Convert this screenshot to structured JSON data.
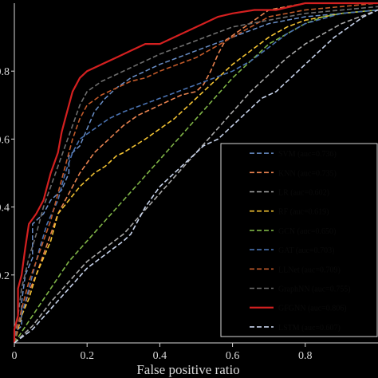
{
  "chart_data": {
    "type": "line",
    "title": "",
    "xlabel": "False positive ratio",
    "ylabel": "",
    "xlim": [
      0,
      1
    ],
    "ylim": [
      0,
      1
    ],
    "xticks": [
      "0",
      "0.2",
      "0.4",
      "0.6",
      "0.8"
    ],
    "yticks": [
      "0.2",
      "0.4",
      "0.6",
      "0.8"
    ],
    "legend_position": "bottom-right",
    "series": [
      {
        "name": "SVM (auc=0.736)",
        "color": "#6a8fc8",
        "dash": "6,3",
        "width": 1.5,
        "points": [
          [
            0,
            0
          ],
          [
            0,
            0.03
          ],
          [
            0.02,
            0.05
          ],
          [
            0.02,
            0.12
          ],
          [
            0.03,
            0.2
          ],
          [
            0.05,
            0.25
          ],
          [
            0.05,
            0.35
          ],
          [
            0.08,
            0.38
          ],
          [
            0.1,
            0.42
          ],
          [
            0.13,
            0.45
          ],
          [
            0.15,
            0.5
          ],
          [
            0.15,
            0.55
          ],
          [
            0.18,
            0.58
          ],
          [
            0.2,
            0.63
          ],
          [
            0.22,
            0.68
          ],
          [
            0.25,
            0.72
          ],
          [
            0.28,
            0.75
          ],
          [
            0.32,
            0.78
          ],
          [
            0.36,
            0.8
          ],
          [
            0.4,
            0.82
          ],
          [
            0.45,
            0.84
          ],
          [
            0.5,
            0.86
          ],
          [
            0.55,
            0.88
          ],
          [
            0.6,
            0.9
          ],
          [
            0.65,
            0.92
          ],
          [
            0.7,
            0.94
          ],
          [
            0.8,
            0.96
          ],
          [
            0.9,
            0.97
          ],
          [
            1,
            0.98
          ]
        ]
      },
      {
        "name": "KNN (auc=0.735)",
        "color": "#e8824f",
        "dash": "6,3",
        "width": 1.6,
        "points": [
          [
            0,
            0
          ],
          [
            0.02,
            0.08
          ],
          [
            0.04,
            0.15
          ],
          [
            0.06,
            0.2
          ],
          [
            0.08,
            0.26
          ],
          [
            0.1,
            0.32
          ],
          [
            0.12,
            0.38
          ],
          [
            0.15,
            0.44
          ],
          [
            0.18,
            0.5
          ],
          [
            0.22,
            0.56
          ],
          [
            0.26,
            0.6
          ],
          [
            0.3,
            0.64
          ],
          [
            0.34,
            0.67
          ],
          [
            0.38,
            0.69
          ],
          [
            0.42,
            0.71
          ],
          [
            0.46,
            0.73
          ],
          [
            0.5,
            0.74
          ],
          [
            0.52,
            0.76
          ],
          [
            0.54,
            0.8
          ],
          [
            0.56,
            0.85
          ],
          [
            0.58,
            0.89
          ],
          [
            0.62,
            0.92
          ],
          [
            0.66,
            0.95
          ],
          [
            0.7,
            0.98
          ],
          [
            0.8,
            1
          ],
          [
            1,
            1
          ]
        ]
      },
      {
        "name": "LR (auc=0.602)",
        "color": "#a9a9a9",
        "dash": "6,3",
        "width": 1.6,
        "points": [
          [
            0,
            0
          ],
          [
            0.05,
            0.05
          ],
          [
            0.1,
            0.12
          ],
          [
            0.15,
            0.18
          ],
          [
            0.2,
            0.24
          ],
          [
            0.25,
            0.28
          ],
          [
            0.3,
            0.32
          ],
          [
            0.35,
            0.38
          ],
          [
            0.4,
            0.44
          ],
          [
            0.45,
            0.5
          ],
          [
            0.5,
            0.56
          ],
          [
            0.55,
            0.62
          ],
          [
            0.6,
            0.68
          ],
          [
            0.65,
            0.74
          ],
          [
            0.7,
            0.79
          ],
          [
            0.75,
            0.84
          ],
          [
            0.8,
            0.88
          ],
          [
            0.85,
            0.91
          ],
          [
            0.9,
            0.94
          ],
          [
            0.95,
            0.96
          ],
          [
            1,
            0.98
          ]
        ]
      },
      {
        "name": "RF (auc=0.619)",
        "color": "#f2c232",
        "dash": "6,3",
        "width": 1.6,
        "points": [
          [
            0,
            0
          ],
          [
            0.02,
            0.08
          ],
          [
            0.04,
            0.13
          ],
          [
            0.06,
            0.2
          ],
          [
            0.08,
            0.25
          ],
          [
            0.1,
            0.3
          ],
          [
            0.12,
            0.38
          ],
          [
            0.15,
            0.42
          ],
          [
            0.18,
            0.46
          ],
          [
            0.2,
            0.48
          ],
          [
            0.22,
            0.5
          ],
          [
            0.25,
            0.52
          ],
          [
            0.28,
            0.55
          ],
          [
            0.3,
            0.56
          ],
          [
            0.33,
            0.58
          ],
          [
            0.36,
            0.6
          ],
          [
            0.4,
            0.63
          ],
          [
            0.44,
            0.66
          ],
          [
            0.48,
            0.7
          ],
          [
            0.52,
            0.74
          ],
          [
            0.56,
            0.78
          ],
          [
            0.6,
            0.82
          ],
          [
            0.65,
            0.86
          ],
          [
            0.7,
            0.9
          ],
          [
            0.75,
            0.93
          ],
          [
            0.8,
            0.95
          ],
          [
            0.9,
            0.97
          ],
          [
            1,
            0.98
          ]
        ]
      },
      {
        "name": "GCN (auc=0.650)",
        "color": "#7fb446",
        "dash": "6,3",
        "width": 1.6,
        "points": [
          [
            0,
            0
          ],
          [
            0.05,
            0.08
          ],
          [
            0.1,
            0.16
          ],
          [
            0.15,
            0.24
          ],
          [
            0.2,
            0.3
          ],
          [
            0.25,
            0.36
          ],
          [
            0.3,
            0.42
          ],
          [
            0.35,
            0.48
          ],
          [
            0.4,
            0.54
          ],
          [
            0.45,
            0.6
          ],
          [
            0.5,
            0.66
          ],
          [
            0.55,
            0.72
          ],
          [
            0.6,
            0.78
          ],
          [
            0.65,
            0.83
          ],
          [
            0.7,
            0.88
          ],
          [
            0.75,
            0.91
          ],
          [
            0.8,
            0.94
          ],
          [
            0.85,
            0.96
          ],
          [
            0.9,
            0.97
          ],
          [
            1,
            0.98
          ]
        ]
      },
      {
        "name": "GAT (auc=0.703)",
        "color": "#4a72b0",
        "dash": "6,3",
        "width": 1.6,
        "points": [
          [
            0,
            0
          ],
          [
            0.01,
            0.05
          ],
          [
            0.03,
            0.12
          ],
          [
            0.05,
            0.2
          ],
          [
            0.07,
            0.28
          ],
          [
            0.09,
            0.35
          ],
          [
            0.12,
            0.42
          ],
          [
            0.14,
            0.5
          ],
          [
            0.16,
            0.56
          ],
          [
            0.18,
            0.6
          ],
          [
            0.22,
            0.63
          ],
          [
            0.26,
            0.66
          ],
          [
            0.3,
            0.68
          ],
          [
            0.35,
            0.7
          ],
          [
            0.4,
            0.72
          ],
          [
            0.45,
            0.74
          ],
          [
            0.5,
            0.76
          ],
          [
            0.55,
            0.78
          ],
          [
            0.6,
            0.8
          ],
          [
            0.65,
            0.83
          ],
          [
            0.7,
            0.87
          ],
          [
            0.75,
            0.91
          ],
          [
            0.8,
            0.94
          ],
          [
            0.9,
            0.97
          ],
          [
            1,
            0.98
          ]
        ]
      },
      {
        "name": "LLNet (auc=0.709)",
        "color": "#c25a2a",
        "dash": "6,3",
        "width": 1.6,
        "points": [
          [
            0,
            0
          ],
          [
            0.02,
            0.1
          ],
          [
            0.04,
            0.18
          ],
          [
            0.06,
            0.24
          ],
          [
            0.08,
            0.3
          ],
          [
            0.1,
            0.36
          ],
          [
            0.12,
            0.44
          ],
          [
            0.14,
            0.52
          ],
          [
            0.16,
            0.6
          ],
          [
            0.18,
            0.66
          ],
          [
            0.2,
            0.7
          ],
          [
            0.24,
            0.73
          ],
          [
            0.28,
            0.75
          ],
          [
            0.32,
            0.77
          ],
          [
            0.36,
            0.78
          ],
          [
            0.4,
            0.8
          ],
          [
            0.45,
            0.82
          ],
          [
            0.5,
            0.84
          ],
          [
            0.55,
            0.87
          ],
          [
            0.6,
            0.9
          ],
          [
            0.65,
            0.93
          ],
          [
            0.7,
            0.96
          ],
          [
            0.8,
            0.98
          ],
          [
            1,
            1
          ]
        ]
      },
      {
        "name": "GraphNN (auc=0.755)",
        "color": "#6e6e6e",
        "dash": "6,3",
        "width": 1.6,
        "points": [
          [
            0,
            0
          ],
          [
            0.01,
            0.08
          ],
          [
            0.02,
            0.16
          ],
          [
            0.04,
            0.25
          ],
          [
            0.06,
            0.32
          ],
          [
            0.08,
            0.4
          ],
          [
            0.1,
            0.46
          ],
          [
            0.12,
            0.52
          ],
          [
            0.14,
            0.58
          ],
          [
            0.16,
            0.64
          ],
          [
            0.18,
            0.7
          ],
          [
            0.2,
            0.74
          ],
          [
            0.24,
            0.77
          ],
          [
            0.28,
            0.79
          ],
          [
            0.32,
            0.81
          ],
          [
            0.36,
            0.83
          ],
          [
            0.4,
            0.85
          ],
          [
            0.45,
            0.87
          ],
          [
            0.5,
            0.89
          ],
          [
            0.55,
            0.91
          ],
          [
            0.6,
            0.93
          ],
          [
            0.7,
            0.95
          ],
          [
            0.8,
            0.97
          ],
          [
            1,
            0.99
          ]
        ]
      },
      {
        "name": "GFGNN (auc=0.806)",
        "color": "#d42020",
        "dash": "",
        "width": 2.2,
        "points": [
          [
            0,
            0
          ],
          [
            0,
            0.04
          ],
          [
            0.01,
            0.08
          ],
          [
            0.01,
            0.16
          ],
          [
            0.02,
            0.2
          ],
          [
            0.03,
            0.28
          ],
          [
            0.04,
            0.35
          ],
          [
            0.06,
            0.38
          ],
          [
            0.08,
            0.42
          ],
          [
            0.1,
            0.5
          ],
          [
            0.12,
            0.56
          ],
          [
            0.13,
            0.62
          ],
          [
            0.14,
            0.66
          ],
          [
            0.15,
            0.7
          ],
          [
            0.16,
            0.74
          ],
          [
            0.18,
            0.78
          ],
          [
            0.2,
            0.8
          ],
          [
            0.24,
            0.82
          ],
          [
            0.28,
            0.84
          ],
          [
            0.32,
            0.86
          ],
          [
            0.36,
            0.88
          ],
          [
            0.4,
            0.88
          ],
          [
            0.44,
            0.9
          ],
          [
            0.48,
            0.92
          ],
          [
            0.52,
            0.94
          ],
          [
            0.56,
            0.96
          ],
          [
            0.6,
            0.97
          ],
          [
            0.66,
            0.98
          ],
          [
            0.72,
            0.98
          ],
          [
            0.8,
            1
          ],
          [
            1,
            1
          ]
        ]
      },
      {
        "name": "LSTM (auc=0.607)",
        "color": "#c8d4ec",
        "dash": "6,3",
        "width": 1.6,
        "points": [
          [
            0,
            0
          ],
          [
            0.05,
            0.04
          ],
          [
            0.1,
            0.1
          ],
          [
            0.15,
            0.16
          ],
          [
            0.2,
            0.22
          ],
          [
            0.25,
            0.26
          ],
          [
            0.3,
            0.3
          ],
          [
            0.32,
            0.32
          ],
          [
            0.36,
            0.4
          ],
          [
            0.4,
            0.46
          ],
          [
            0.44,
            0.5
          ],
          [
            0.48,
            0.54
          ],
          [
            0.52,
            0.58
          ],
          [
            0.56,
            0.6
          ],
          [
            0.6,
            0.64
          ],
          [
            0.64,
            0.68
          ],
          [
            0.68,
            0.72
          ],
          [
            0.72,
            0.74
          ],
          [
            0.76,
            0.78
          ],
          [
            0.8,
            0.82
          ],
          [
            0.84,
            0.86
          ],
          [
            0.88,
            0.9
          ],
          [
            0.92,
            0.93
          ],
          [
            0.96,
            0.96
          ],
          [
            1,
            0.98
          ]
        ]
      }
    ]
  }
}
